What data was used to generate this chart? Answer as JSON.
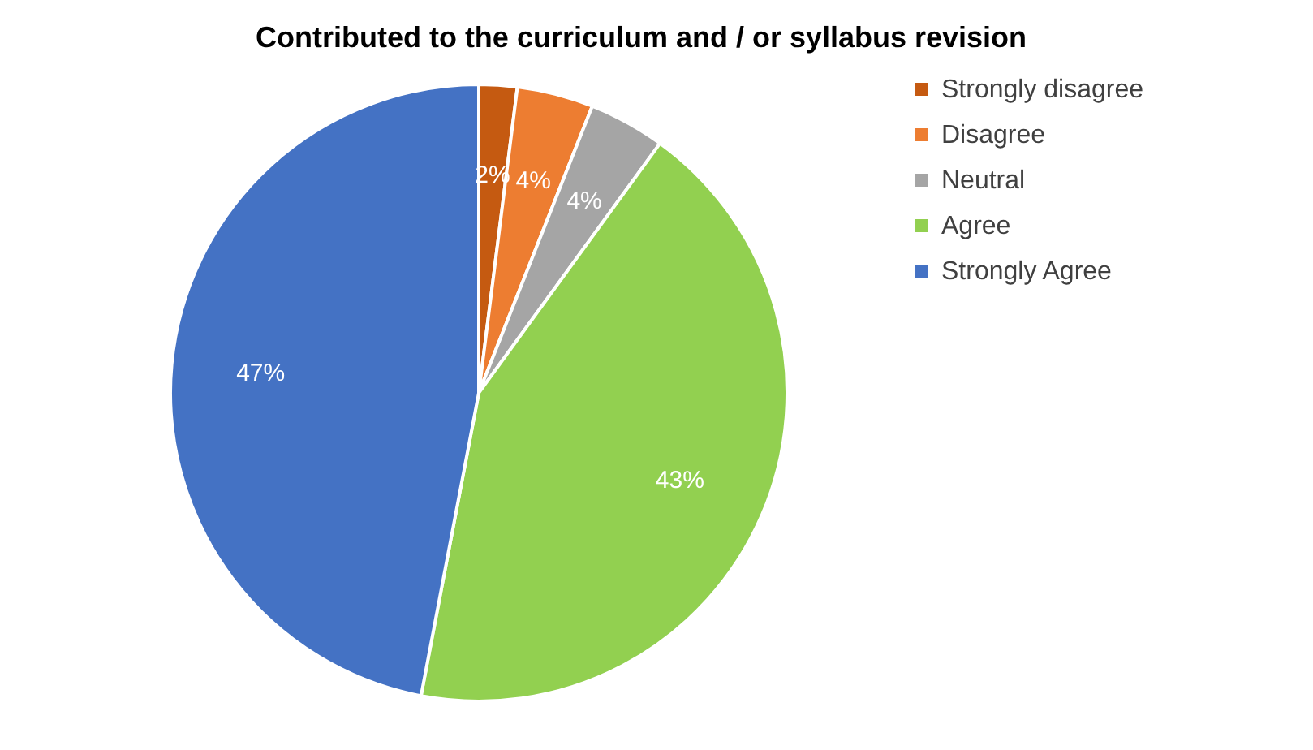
{
  "chart_data": {
    "type": "pie",
    "title": "Contributed to the curriculum and / or syllabus revision",
    "categories": [
      "Strongly disagree",
      "Disagree",
      "Neutral",
      "Agree",
      "Strongly Agree"
    ],
    "values": [
      2,
      4,
      4,
      43,
      47
    ],
    "colors": [
      "#c55a11",
      "#ed7d31",
      "#a5a5a5",
      "#92d050",
      "#4472c4"
    ],
    "value_labels": [
      "2%",
      "4%",
      "4%",
      "43%",
      "47%"
    ],
    "legend": "right"
  }
}
